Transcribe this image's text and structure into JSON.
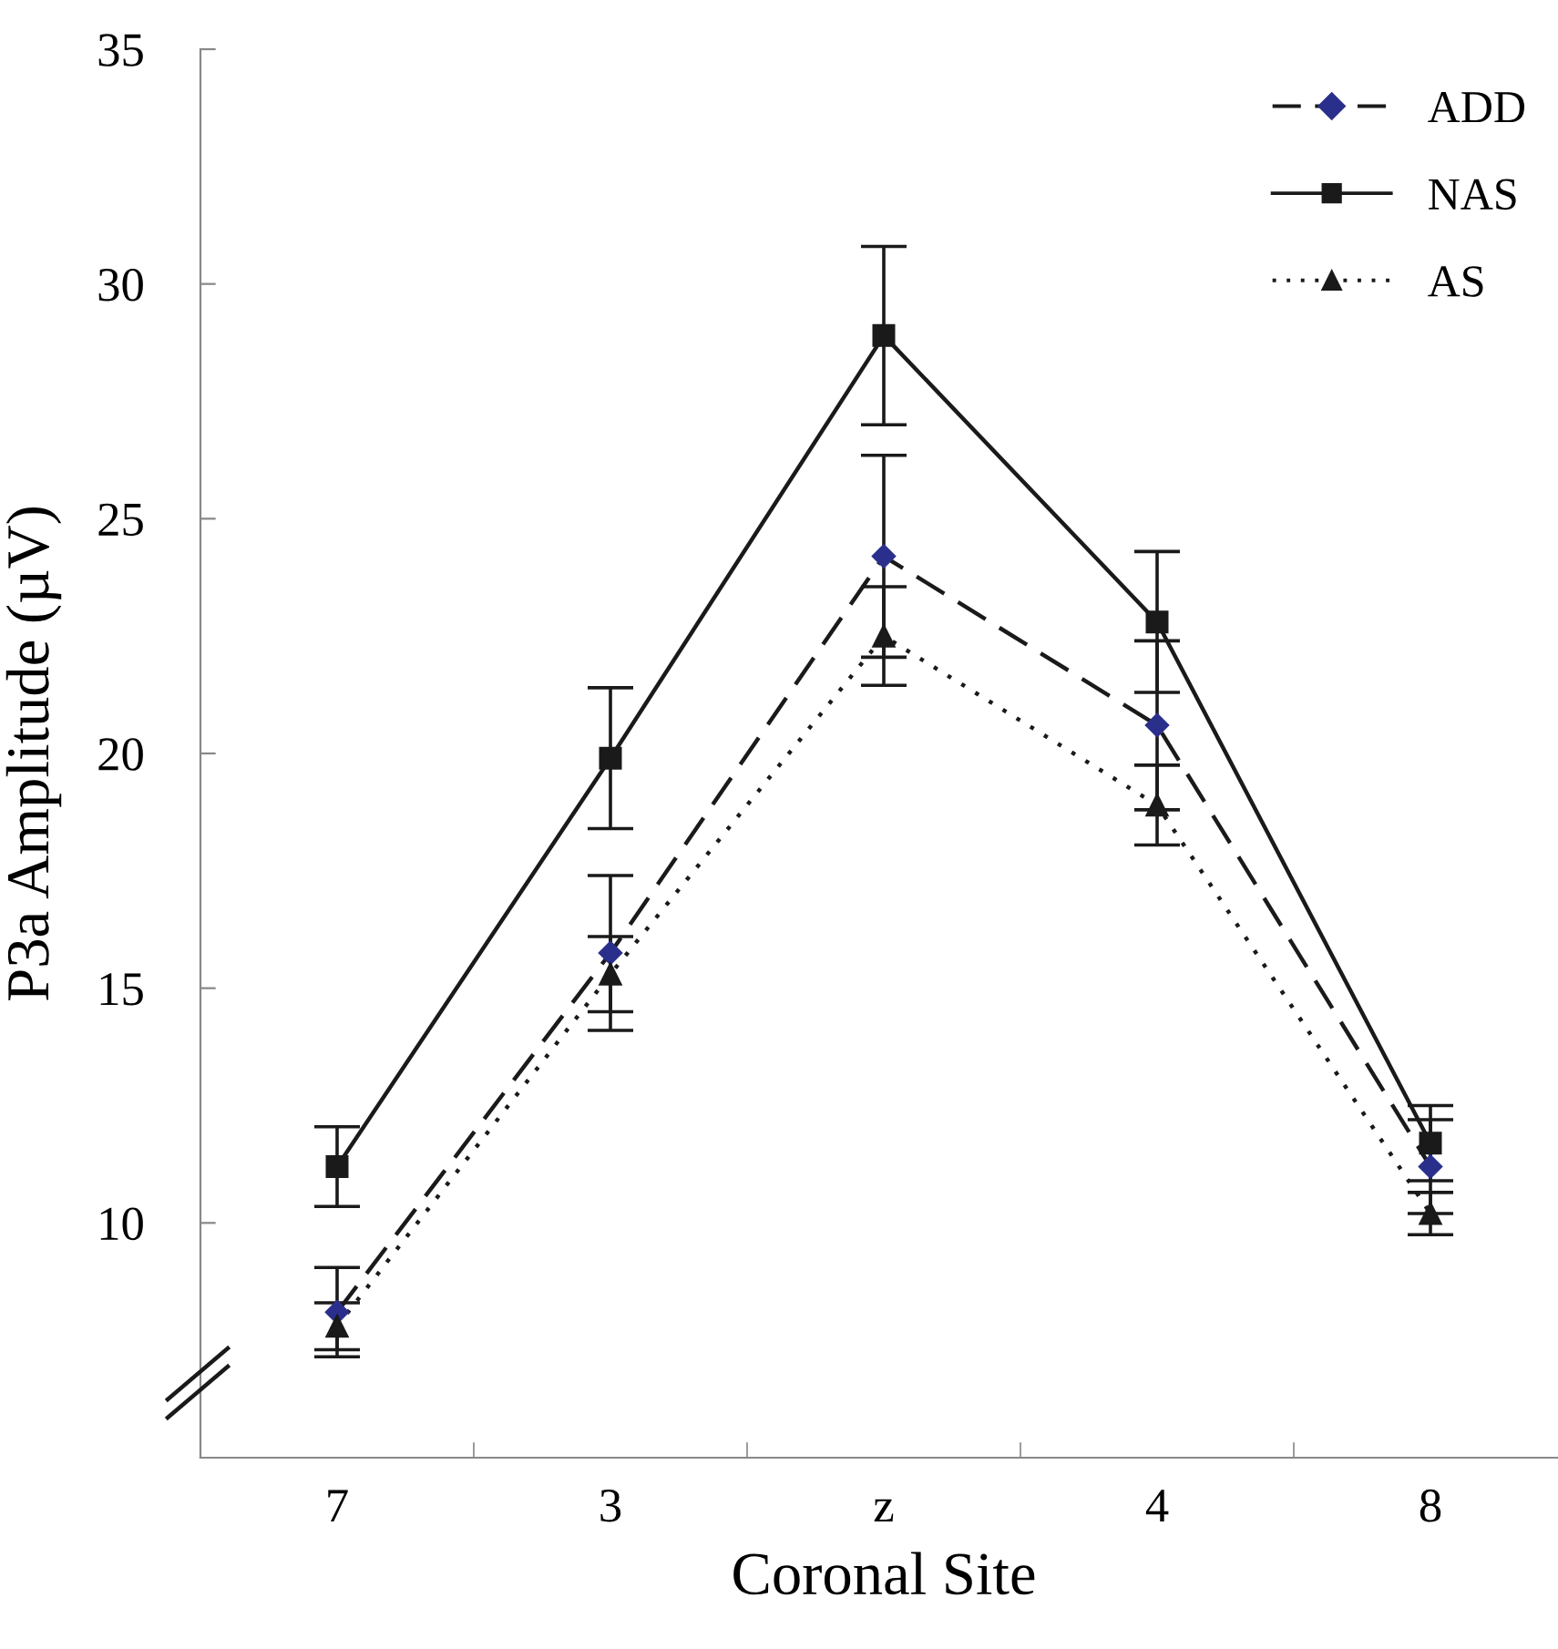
{
  "chart_data": {
    "type": "line",
    "xlabel": "Coronal Site",
    "ylabel": "P3a Amplitude (µV)",
    "categories": [
      "7",
      "3",
      "z",
      "4",
      "8"
    ],
    "series": [
      {
        "name": "ADD",
        "color": "#2b2f8c",
        "values": [
          8.1,
          15.75,
          24.2,
          20.6,
          11.2
        ],
        "errors": [
          0.95,
          1.65,
          2.15,
          1.8,
          1.0
        ],
        "marker": "diamond",
        "line_style": "dashed"
      },
      {
        "name": "NAS",
        "color": "#1a1a1a",
        "values": [
          11.2,
          19.9,
          28.9,
          22.8,
          11.7
        ],
        "errors": [
          0.85,
          1.5,
          1.9,
          1.5,
          0.8
        ],
        "marker": "square",
        "line_style": "solid"
      },
      {
        "name": "AS",
        "color": "#1a1a1a",
        "values": [
          7.8,
          15.3,
          22.5,
          18.9,
          10.2
        ],
        "errors": [
          0.5,
          0.8,
          1.05,
          0.85,
          0.45
        ],
        "marker": "triangle",
        "line_style": "dotted"
      }
    ],
    "ylim": [
      5,
      35
    ],
    "yticks": [
      10,
      15,
      20,
      25,
      30,
      35
    ],
    "grid": false,
    "legend": "top right"
  }
}
